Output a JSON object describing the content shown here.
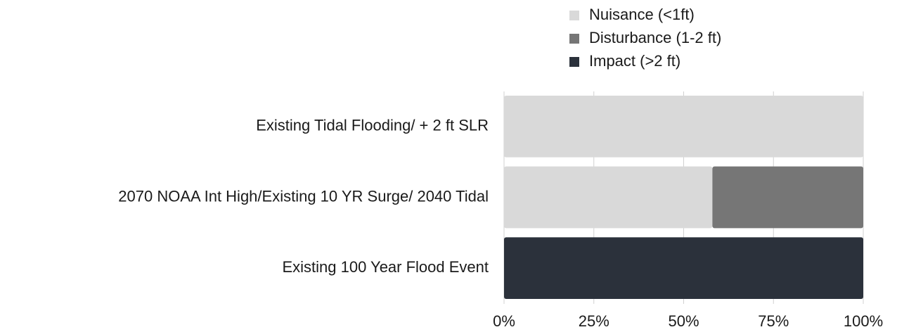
{
  "chart_data": {
    "type": "stacked_barh",
    "categories": [
      "Existing Tidal Flooding/ + 2 ft SLR",
      "2070 NOAA Int High/Existing 10 YR Surge/ 2040 Tidal",
      "Existing 100 Year Flood Event"
    ],
    "series": [
      {
        "name": "Nuisance (<1ft)",
        "color": "#d9d9d9",
        "values": [
          100,
          58,
          0
        ]
      },
      {
        "name": "Disturbance (1-2 ft)",
        "color": "#767676",
        "values": [
          0,
          42,
          0
        ]
      },
      {
        "name": "Impact (>2 ft)",
        "color": "#2b313b",
        "values": [
          0,
          0,
          100
        ]
      }
    ],
    "xlim": [
      0,
      100
    ],
    "xticks": [
      {
        "value": 0,
        "label": "0%"
      },
      {
        "value": 25,
        "label": "25%"
      },
      {
        "value": 50,
        "label": "50%"
      },
      {
        "value": 75,
        "label": "75%"
      },
      {
        "value": 100,
        "label": "100%"
      }
    ],
    "grid": true,
    "legend": "top"
  }
}
